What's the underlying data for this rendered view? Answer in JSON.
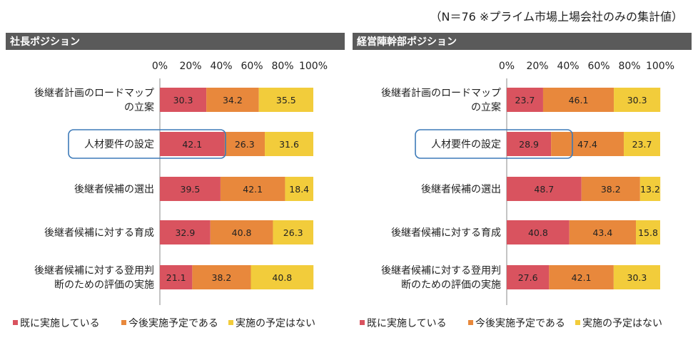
{
  "note": "（N＝76 ※プライム市場上場会社のみの集計値）",
  "colors": {
    "header_bg": "#5a5a5a",
    "series": [
      "#d9535f",
      "#e8883c",
      "#f2cc3b"
    ],
    "highlight": "#3d7ab8"
  },
  "chart_data": [
    {
      "type": "bar",
      "orientation": "horizontal",
      "stacked": "percent",
      "title": "社長ポジション",
      "categories": [
        "後継者計画のロードマップの立案",
        "人材要件の設定",
        "後継者候補の選出",
        "後継者候補に対する育成",
        "後継者候補に対する登用判断のための評価の実施"
      ],
      "category_lines": [
        [
          "後継者計画のロードマップ",
          "の立案"
        ],
        [
          "人材要件の設定"
        ],
        [
          "後継者候補の選出"
        ],
        [
          "後継者候補に対する育成"
        ],
        [
          "後継者候補に対する登用判",
          "断のための評価の実施"
        ]
      ],
      "series": [
        {
          "name": "既に実施している",
          "values": [
            30.3,
            42.1,
            39.5,
            32.9,
            21.1
          ]
        },
        {
          "name": "今後実施予定である",
          "values": [
            34.2,
            26.3,
            42.1,
            40.8,
            38.2
          ]
        },
        {
          "name": "実施の予定はない",
          "values": [
            35.5,
            31.6,
            18.4,
            26.3,
            40.8
          ]
        }
      ],
      "xticks": [
        "0%",
        "20%",
        "40%",
        "60%",
        "80%",
        "100%"
      ],
      "xlim": [
        0,
        100
      ],
      "highlighted_category": "人材要件の設定",
      "legend": "bottom",
      "grid": false
    },
    {
      "type": "bar",
      "orientation": "horizontal",
      "stacked": "percent",
      "title": "経営陣幹部ポジション",
      "categories": [
        "後継者計画のロードマップの立案",
        "人材要件の設定",
        "後継者候補の選出",
        "後継者候補に対する育成",
        "後継者候補に対する登用判断のための評価の実施"
      ],
      "category_lines": [
        [
          "後継者計画のロードマップ",
          "の立案"
        ],
        [
          "人材要件の設定"
        ],
        [
          "後継者候補の選出"
        ],
        [
          "後継者候補に対する育成"
        ],
        [
          "後継者候補に対する登用判",
          "断のための評価の実施"
        ]
      ],
      "series": [
        {
          "name": "既に実施している",
          "values": [
            23.7,
            28.9,
            48.7,
            40.8,
            27.6
          ]
        },
        {
          "name": "今後実施予定である",
          "values": [
            46.1,
            47.4,
            38.2,
            43.4,
            42.1
          ]
        },
        {
          "name": "実施の予定はない",
          "values": [
            30.3,
            23.7,
            13.2,
            15.8,
            30.3
          ]
        }
      ],
      "xticks": [
        "0%",
        "20%",
        "40%",
        "60%",
        "80%",
        "100%"
      ],
      "xlim": [
        0,
        100
      ],
      "highlighted_category": "人材要件の設定",
      "legend": "bottom",
      "grid": false
    }
  ]
}
